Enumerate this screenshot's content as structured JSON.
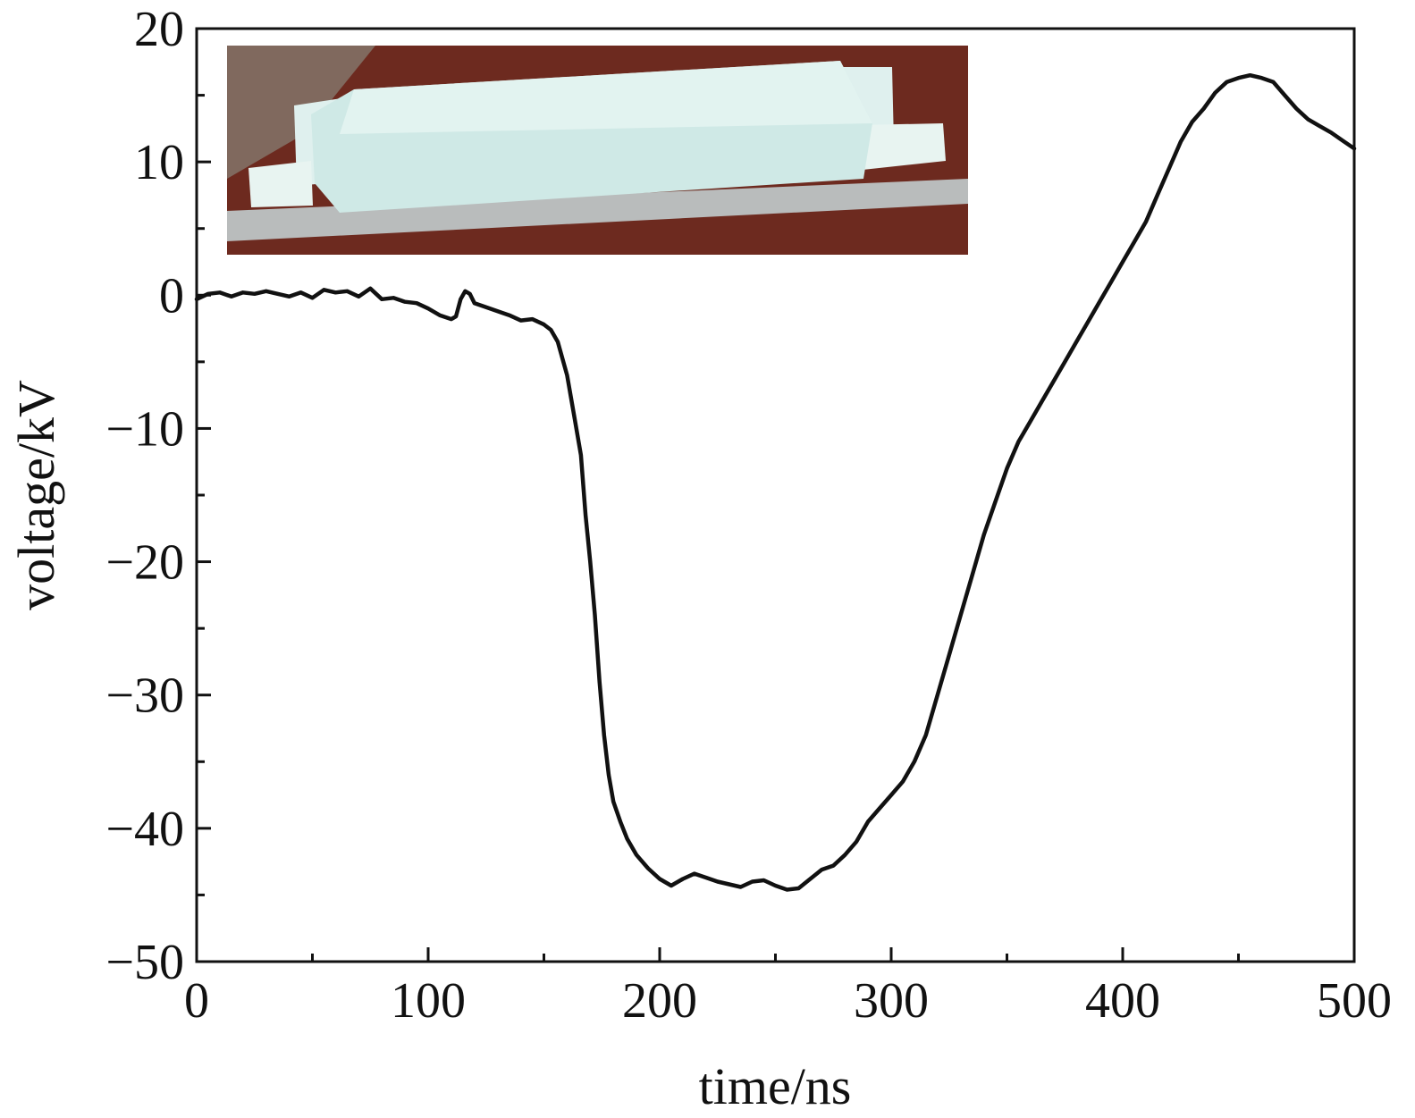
{
  "chart_data": {
    "type": "line",
    "xlabel": "time/ns",
    "ylabel": "voltage/kV",
    "xlim": [
      0,
      500
    ],
    "ylim": [
      -50,
      20
    ],
    "x_ticks": [
      0,
      100,
      200,
      300,
      400,
      500
    ],
    "y_ticks": [
      20,
      10,
      0,
      -10,
      -20,
      -30,
      -40,
      -50
    ],
    "y_tick_labels": [
      "20",
      "10",
      "0",
      "−10",
      "−20",
      "−30",
      "−40",
      "−50"
    ],
    "grid": false,
    "legend": "none",
    "series": [
      {
        "color": "#111111",
        "points": [
          [
            0,
            -0.3
          ],
          [
            5,
            0.1
          ],
          [
            10,
            0.2
          ],
          [
            15,
            -0.1
          ],
          [
            20,
            0.2
          ],
          [
            25,
            0.1
          ],
          [
            30,
            0.3
          ],
          [
            35,
            0.1
          ],
          [
            40,
            -0.1
          ],
          [
            45,
            0.2
          ],
          [
            50,
            -0.2
          ],
          [
            55,
            0.4
          ],
          [
            60,
            0.2
          ],
          [
            65,
            0.3
          ],
          [
            70,
            -0.1
          ],
          [
            75,
            0.5
          ],
          [
            80,
            -0.3
          ],
          [
            85,
            -0.2
          ],
          [
            90,
            -0.5
          ],
          [
            95,
            -0.6
          ],
          [
            100,
            -1.0
          ],
          [
            105,
            -1.5
          ],
          [
            110,
            -1.8
          ],
          [
            112,
            -1.6
          ],
          [
            114,
            -0.3
          ],
          [
            116,
            0.3
          ],
          [
            118,
            0.1
          ],
          [
            120,
            -0.6
          ],
          [
            125,
            -0.9
          ],
          [
            130,
            -1.2
          ],
          [
            135,
            -1.5
          ],
          [
            140,
            -1.9
          ],
          [
            145,
            -1.8
          ],
          [
            150,
            -2.2
          ],
          [
            153,
            -2.6
          ],
          [
            156,
            -3.5
          ],
          [
            160,
            -6.0
          ],
          [
            163,
            -9.0
          ],
          [
            166,
            -12.0
          ],
          [
            168,
            -16.5
          ],
          [
            170,
            -20.0
          ],
          [
            172,
            -24.0
          ],
          [
            174,
            -29.0
          ],
          [
            176,
            -33.0
          ],
          [
            178,
            -36.0
          ],
          [
            180,
            -38.0
          ],
          [
            183,
            -39.5
          ],
          [
            186,
            -40.8
          ],
          [
            190,
            -42.0
          ],
          [
            195,
            -43.0
          ],
          [
            200,
            -43.8
          ],
          [
            205,
            -44.3
          ],
          [
            210,
            -43.8
          ],
          [
            215,
            -43.4
          ],
          [
            220,
            -43.7
          ],
          [
            225,
            -44.0
          ],
          [
            230,
            -44.2
          ],
          [
            235,
            -44.4
          ],
          [
            240,
            -44.0
          ],
          [
            245,
            -43.9
          ],
          [
            250,
            -44.3
          ],
          [
            255,
            -44.6
          ],
          [
            260,
            -44.5
          ],
          [
            265,
            -43.8
          ],
          [
            270,
            -43.1
          ],
          [
            275,
            -42.8
          ],
          [
            280,
            -42.0
          ],
          [
            285,
            -41.0
          ],
          [
            290,
            -39.5
          ],
          [
            295,
            -38.5
          ],
          [
            300,
            -37.5
          ],
          [
            305,
            -36.5
          ],
          [
            310,
            -35.0
          ],
          [
            315,
            -33.0
          ],
          [
            320,
            -30.0
          ],
          [
            325,
            -27.0
          ],
          [
            330,
            -24.0
          ],
          [
            335,
            -21.0
          ],
          [
            340,
            -18.0
          ],
          [
            345,
            -15.5
          ],
          [
            350,
            -13.0
          ],
          [
            355,
            -11.0
          ],
          [
            360,
            -9.5
          ],
          [
            365,
            -8.0
          ],
          [
            370,
            -6.5
          ],
          [
            375,
            -5.0
          ],
          [
            380,
            -3.5
          ],
          [
            385,
            -2.0
          ],
          [
            390,
            -0.5
          ],
          [
            395,
            1.0
          ],
          [
            400,
            2.5
          ],
          [
            405,
            4.0
          ],
          [
            410,
            5.5
          ],
          [
            415,
            7.5
          ],
          [
            420,
            9.5
          ],
          [
            425,
            11.5
          ],
          [
            430,
            13.0
          ],
          [
            435,
            14.0
          ],
          [
            440,
            15.2
          ],
          [
            445,
            16.0
          ],
          [
            450,
            16.3
          ],
          [
            455,
            16.5
          ],
          [
            460,
            16.3
          ],
          [
            465,
            16.0
          ],
          [
            470,
            15.0
          ],
          [
            475,
            14.0
          ],
          [
            480,
            13.2
          ],
          [
            485,
            12.7
          ],
          [
            490,
            12.2
          ],
          [
            495,
            11.6
          ],
          [
            500,
            11.0
          ]
        ]
      }
    ]
  }
}
